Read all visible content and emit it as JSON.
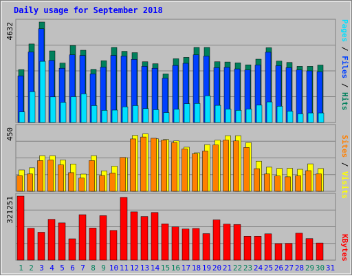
{
  "colors": {
    "hits": "#00805c",
    "files": "#0040ff",
    "pages": "#00e0ff",
    "visits": "#ffff00",
    "sites": "#ff8000",
    "kbytes": "#ff0000",
    "plot_bg": "#c0c0c0",
    "frame": "#a0a0a0",
    "title": "#0000ff",
    "weekend_label": "#00805c",
    "weekday_label": "#0000ff"
  },
  "chart_data": {
    "type": "bar",
    "title": "Daily usage for September 2018",
    "categories": [
      "1",
      "2",
      "3",
      "4",
      "5",
      "6",
      "7",
      "8",
      "9",
      "10",
      "11",
      "12",
      "13",
      "14",
      "15",
      "16",
      "17",
      "18",
      "19",
      "20",
      "21",
      "22",
      "23",
      "24",
      "25",
      "26",
      "27",
      "28",
      "29",
      "30",
      "31"
    ],
    "weekend_days": [
      "1",
      "2",
      "8",
      "9",
      "15",
      "16",
      "22",
      "23",
      "29",
      "30"
    ],
    "panels": [
      {
        "id": "requests",
        "ymax_label": "4632",
        "ylim": [
          0,
          4632
        ],
        "legend": [
          "Pages",
          "Files",
          "Hits"
        ],
        "series": [
          {
            "name": "Hits",
            "values": [
              2440,
              3620,
              4632,
              3300,
              2740,
              3550,
              3330,
              2450,
              2850,
              3460,
              3280,
              3220,
              2800,
              2710,
              2240,
              2940,
              3000,
              3460,
              3460,
              2800,
              2790,
              2750,
              2660,
              2920,
              3450,
              2830,
              2770,
              2590,
              2590,
              2650,
              0
            ]
          },
          {
            "name": "Files",
            "values": [
              2150,
              3250,
              4320,
              2860,
              2500,
              3120,
              3090,
              2240,
              2550,
              3090,
              3060,
              2910,
              2590,
              2500,
              2040,
              2630,
              2730,
              3120,
              3060,
              2530,
              2540,
              2470,
              2420,
              2650,
              3240,
              2620,
              2530,
              2420,
              2380,
              2340,
              0
            ]
          },
          {
            "name": "Pages",
            "values": [
              490,
              1420,
              2820,
              1180,
              930,
              1190,
              1320,
              780,
              560,
              570,
              720,
              780,
              640,
              590,
              460,
              610,
              870,
              880,
              1230,
              790,
              620,
              560,
              620,
              800,
              950,
              750,
              520,
              400,
              440,
              440,
              0
            ]
          }
        ]
      },
      {
        "id": "visitors",
        "ymax_label": "450",
        "ylim": [
          0,
          450
        ],
        "legend": [
          "Sites",
          "Visits"
        ],
        "series": [
          {
            "name": "Visits",
            "values": [
              150,
              165,
              250,
              250,
              220,
              192,
              121,
              250,
              144,
              177,
              236,
              393,
              404,
              369,
              364,
              354,
              310,
              271,
              328,
              360,
              391,
              391,
              343,
              212,
              170,
              161,
              162,
              155,
              193,
              160,
              0
            ]
          },
          {
            "name": "Sites",
            "values": [
              110,
              122,
              216,
              220,
              186,
              131,
              93,
              216,
              111,
              128,
              238,
              368,
              382,
              373,
              359,
              343,
              298,
              264,
              283,
              326,
              360,
              354,
              308,
              159,
              122,
              108,
              102,
              109,
              145,
              122,
              0
            ]
          }
        ]
      },
      {
        "id": "kbytes",
        "ymax_label": "321251",
        "ylim": [
          0,
          321251
        ],
        "legend": [
          "KBytes"
        ],
        "series": [
          {
            "name": "KBytes",
            "values": [
              321251,
              160000,
              140000,
              205000,
              187000,
              107000,
              228000,
              161000,
              223000,
              149000,
              315000,
              242000,
              219000,
              239000,
              182000,
              167000,
              156000,
              159000,
              133000,
              202000,
              181000,
              179000,
              120000,
              120000,
              132000,
              83000,
              84000,
              135000,
              108000,
              86000,
              0
            ]
          }
        ]
      }
    ]
  }
}
